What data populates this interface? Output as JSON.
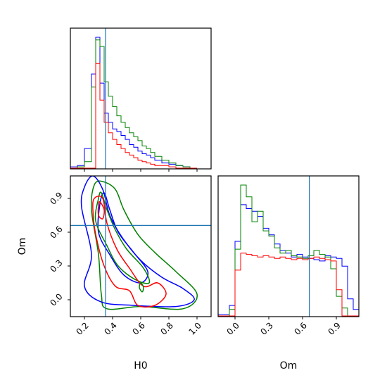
{
  "chart_data": {
    "type": "corner",
    "parameters": [
      "H0",
      "Om"
    ],
    "truth": {
      "H0": 0.35,
      "Om": 0.66
    },
    "colors": {
      "blue": "#0000ff",
      "green": "#008000",
      "red": "#ff0000",
      "truth_line": "#1f77b4"
    },
    "axes": {
      "H0": {
        "range": [
          0.1,
          1.1
        ],
        "ticks": [
          0.2,
          0.4,
          0.6,
          0.8,
          1.0
        ],
        "tick_labels": [
          "0.2",
          "0.4",
          "0.6",
          "0.8",
          "1.0"
        ],
        "label": "H0"
      },
      "Om": {
        "range": [
          -0.15,
          1.1
        ],
        "ticks": [
          0.0,
          0.3,
          0.6,
          0.9
        ],
        "tick_labels": [
          "0.0",
          "0.3",
          "0.6",
          "0.9"
        ],
        "label": "Om"
      }
    },
    "histograms": {
      "H0": {
        "bin_edges": [
          0.1,
          0.15,
          0.2,
          0.25,
          0.28,
          0.31,
          0.34,
          0.37,
          0.4,
          0.43,
          0.46,
          0.49,
          0.52,
          0.55,
          0.58,
          0.61,
          0.64,
          0.67,
          0.7,
          0.75,
          0.8,
          0.85,
          0.9,
          0.95,
          1.0
        ],
        "series": [
          {
            "color": "blue",
            "counts": [
              0.01,
              0.02,
              0.15,
              0.72,
              1.0,
              0.65,
              0.42,
              0.35,
              0.3,
              0.28,
              0.25,
              0.22,
              0.18,
              0.16,
              0.13,
              0.11,
              0.1,
              0.08,
              0.06,
              0.04,
              0.03,
              0.02,
              0.01,
              0.0
            ]
          },
          {
            "color": "green",
            "counts": [
              0.0,
              0.01,
              0.05,
              0.62,
              0.98,
              0.93,
              0.66,
              0.55,
              0.47,
              0.4,
              0.35,
              0.31,
              0.27,
              0.24,
              0.21,
              0.17,
              0.15,
              0.12,
              0.09,
              0.06,
              0.04,
              0.02,
              0.01,
              0.0
            ]
          },
          {
            "color": "red",
            "counts": [
              0.0,
              0.0,
              0.0,
              0.0,
              0.8,
              0.52,
              0.35,
              0.27,
              0.22,
              0.18,
              0.15,
              0.12,
              0.1,
              0.08,
              0.06,
              0.05,
              0.04,
              0.03,
              0.02,
              0.02,
              0.01,
              0.0,
              0.0,
              0.0
            ]
          }
        ]
      },
      "Om": {
        "bin_edges": [
          -0.15,
          -0.1,
          -0.05,
          0.0,
          0.05,
          0.1,
          0.15,
          0.2,
          0.25,
          0.3,
          0.35,
          0.4,
          0.45,
          0.5,
          0.55,
          0.6,
          0.65,
          0.7,
          0.75,
          0.8,
          0.85,
          0.9,
          0.95,
          1.0,
          1.05,
          1.1
        ],
        "series": [
          {
            "color": "blue",
            "counts": [
              0.01,
              0.01,
              0.08,
              0.57,
              0.85,
              0.82,
              0.8,
              0.76,
              0.67,
              0.62,
              0.55,
              0.5,
              0.48,
              0.45,
              0.47,
              0.45,
              0.44,
              0.43,
              0.42,
              0.46,
              0.45,
              0.44,
              0.38,
              0.13,
              0.05
            ]
          },
          {
            "color": "green",
            "counts": [
              0.0,
              0.0,
              0.05,
              0.51,
              1.0,
              0.91,
              0.72,
              0.8,
              0.65,
              0.61,
              0.52,
              0.48,
              0.5,
              0.46,
              0.45,
              0.44,
              0.46,
              0.5,
              0.47,
              0.45,
              0.36,
              0.15,
              0.06,
              0.0,
              0.0
            ]
          },
          {
            "color": "red",
            "counts": [
              0.0,
              0.0,
              0.0,
              0.35,
              0.48,
              0.47,
              0.46,
              0.45,
              0.46,
              0.45,
              0.44,
              0.45,
              0.44,
              0.43,
              0.44,
              0.43,
              0.44,
              0.45,
              0.44,
              0.43,
              0.42,
              0.2,
              0.0,
              0.0,
              0.0
            ]
          }
        ]
      }
    },
    "contours": [
      {
        "color": "green",
        "points": [
          [
            0.33,
            1.05
          ],
          [
            0.42,
            0.98
          ],
          [
            0.48,
            0.8
          ],
          [
            0.58,
            0.58
          ],
          [
            0.7,
            0.42
          ],
          [
            0.85,
            0.25
          ],
          [
            1.0,
            0.05
          ],
          [
            0.9,
            -0.08
          ],
          [
            0.6,
            -0.06
          ],
          [
            0.36,
            -0.08
          ],
          [
            0.32,
            0.05
          ],
          [
            0.3,
            0.4
          ],
          [
            0.25,
            0.8
          ],
          [
            0.27,
            1.02
          ]
        ]
      },
      {
        "color": "blue",
        "points": [
          [
            0.26,
            1.1
          ],
          [
            0.33,
            0.98
          ],
          [
            0.38,
            0.75
          ],
          [
            0.47,
            0.55
          ],
          [
            0.6,
            0.35
          ],
          [
            0.75,
            0.2
          ],
          [
            0.9,
            0.1
          ],
          [
            0.98,
            0.0
          ],
          [
            0.85,
            -0.06
          ],
          [
            0.55,
            -0.05
          ],
          [
            0.32,
            -0.02
          ],
          [
            0.2,
            0.12
          ],
          [
            0.25,
            0.4
          ],
          [
            0.18,
            0.82
          ],
          [
            0.2,
            1.0
          ]
        ]
      },
      {
        "color": "blue",
        "points": [
          [
            0.34,
            0.95
          ],
          [
            0.38,
            0.8
          ],
          [
            0.44,
            0.6
          ],
          [
            0.55,
            0.42
          ],
          [
            0.65,
            0.25
          ],
          [
            0.6,
            0.15
          ],
          [
            0.48,
            0.22
          ],
          [
            0.38,
            0.4
          ],
          [
            0.3,
            0.6
          ],
          [
            0.31,
            0.85
          ]
        ]
      },
      {
        "color": "green",
        "points": [
          [
            0.32,
            0.95
          ],
          [
            0.36,
            0.8
          ],
          [
            0.42,
            0.62
          ],
          [
            0.5,
            0.45
          ],
          [
            0.62,
            0.28
          ],
          [
            0.66,
            0.15
          ],
          [
            0.56,
            0.18
          ],
          [
            0.44,
            0.3
          ],
          [
            0.36,
            0.48
          ],
          [
            0.28,
            0.7
          ],
          [
            0.3,
            0.9
          ]
        ]
      },
      {
        "color": "red",
        "points": [
          [
            0.27,
            0.9
          ],
          [
            0.33,
            0.9
          ],
          [
            0.36,
            0.68
          ],
          [
            0.43,
            0.45
          ],
          [
            0.52,
            0.28
          ],
          [
            0.62,
            0.12
          ],
          [
            0.72,
            0.15
          ],
          [
            0.78,
            0.05
          ],
          [
            0.7,
            -0.05
          ],
          [
            0.58,
            -0.05
          ],
          [
            0.52,
            0.08
          ],
          [
            0.42,
            0.12
          ],
          [
            0.34,
            0.3
          ],
          [
            0.28,
            0.58
          ],
          [
            0.26,
            0.8
          ]
        ]
      },
      {
        "color": "red",
        "points": [
          [
            0.31,
            0.87
          ],
          [
            0.34,
            0.8
          ],
          [
            0.33,
            0.72
          ],
          [
            0.3,
            0.75
          ],
          [
            0.3,
            0.84
          ]
        ]
      },
      {
        "color": "green",
        "points": [
          [
            0.6,
            0.15
          ],
          [
            0.62,
            0.11
          ],
          [
            0.61,
            0.07
          ],
          [
            0.59,
            0.11
          ]
        ]
      }
    ]
  }
}
